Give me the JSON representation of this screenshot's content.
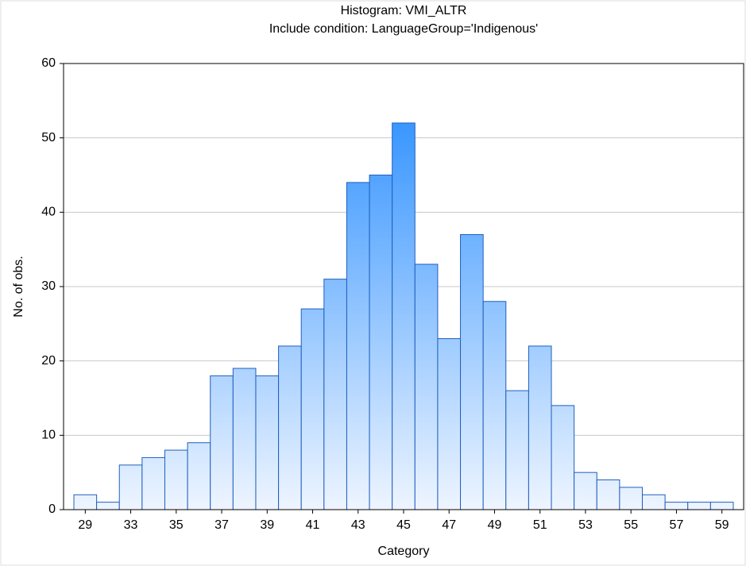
{
  "chart_data": {
    "type": "bar",
    "title": "Histogram: VMI_ALTR",
    "subtitle": "Include condition: LanguageGroup='Indigenous'",
    "x_label": "Category",
    "y_label": "No. of obs.",
    "categories": [
      "29",
      null,
      "33",
      null,
      "35",
      null,
      "37",
      null,
      "39",
      null,
      "41",
      null,
      "43",
      null,
      "45",
      null,
      "47",
      null,
      "49",
      null,
      "51",
      null,
      "53",
      null,
      "55",
      null,
      "57",
      null,
      "59"
    ],
    "values": [
      2,
      1,
      6,
      7,
      8,
      9,
      18,
      19,
      18,
      22,
      27,
      31,
      44,
      45,
      52,
      33,
      23,
      37,
      28,
      16,
      22,
      14,
      5,
      4,
      3,
      2,
      1,
      1,
      1
    ],
    "color": "#1e88ff",
    "edge_color": "#1f5fbf",
    "ylim": [
      0,
      60
    ],
    "yticks": [
      0,
      10,
      20,
      30,
      40,
      50,
      60
    ],
    "grid": true
  }
}
